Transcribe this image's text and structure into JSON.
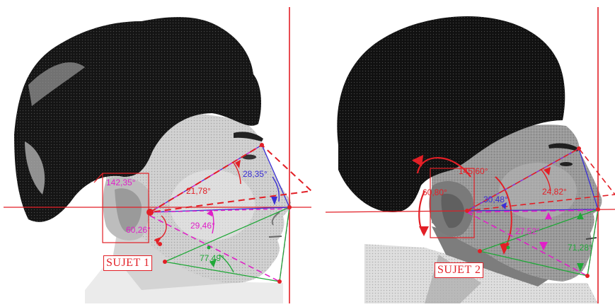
{
  "panels": [
    {
      "subject_label": "SUJET 1",
      "angles": [
        "142,35°",
        "21,78°",
        "28,35°",
        "60,26°",
        "29,46°",
        "77,49°"
      ]
    },
    {
      "subject_label": "SUJET 2",
      "angles": [
        "145,60°",
        "60,80°",
        "24,82°",
        "30,48°",
        "27,52°",
        "71,28°"
      ]
    }
  ],
  "colors": {
    "red": "#e21f26",
    "blue": "#3a2fd6",
    "magenta": "#e020c8",
    "green": "#20a838",
    "violet": "#8e2fcf"
  }
}
